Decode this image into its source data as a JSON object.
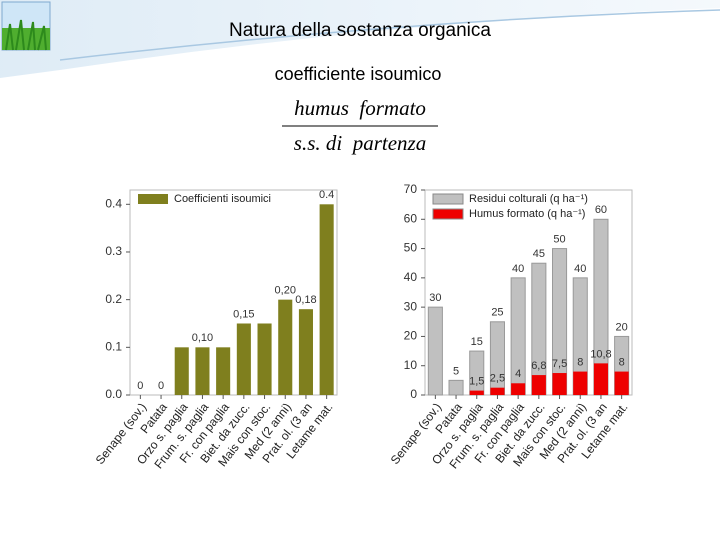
{
  "slide": {
    "title": "Natura della sostanza organica",
    "subtitle": "coefficiente isoumico",
    "formula_numerator": "humus  formato",
    "formula_denominator": "s.s. di  partenza"
  },
  "chart_data": [
    {
      "type": "bar",
      "categories": [
        "Senape (sov.)",
        "Patata",
        "Orzo s. paglia",
        "Frum. s. paglia",
        "Fr. con paglia",
        "Biet. da zucc.",
        "Mais con stoc.",
        "Med (2 anni)",
        "Prat. ol. (3 an",
        "Letame mat."
      ],
      "series": [
        {
          "name": "Coefficienti isoumici",
          "color": "#7f7f1e",
          "values": [
            0,
            0,
            0.1,
            0.1,
            0.1,
            0.15,
            0.15,
            0.2,
            0.18,
            0.4
          ],
          "value_labels": [
            "0",
            "0",
            null,
            "0,10",
            null,
            "0,15",
            null,
            "0,20",
            "0,18",
            "0.4"
          ]
        }
      ],
      "ylim": [
        0,
        0.43
      ],
      "yticks": [
        {
          "value": 0,
          "label": "0.0"
        },
        0.1,
        0.2,
        0.3,
        0.4
      ],
      "legend": "top-left"
    },
    {
      "type": "bar",
      "categories": [
        "Senape (sov.)",
        "Patata",
        "Orzo s. paglia",
        "Frum. s. paglia",
        "Fr. con paglia",
        "Biet. da zucc.",
        "Mais con stoc.",
        "Med (2 anni)",
        "Prat. ol. (3 an",
        "Letame mat."
      ],
      "series": [
        {
          "name": "Residui colturali (q ha⁻¹)",
          "color": "#c0c0c0",
          "values": [
            30,
            5,
            15,
            25,
            40,
            45,
            50,
            40,
            60,
            20
          ]
        },
        {
          "name": "Humus formato (q ha⁻¹)",
          "color": "#ee0000",
          "values": [
            null,
            null,
            1.5,
            2.5,
            4,
            6.8,
            7.5,
            8,
            10.8,
            8
          ],
          "value_labels": [
            null,
            null,
            "1,5",
            "2,5",
            "4",
            "6,8",
            "7,5",
            "8",
            "10,8",
            "8"
          ]
        }
      ],
      "ylim": [
        0,
        70
      ],
      "yticks": [
        0,
        10,
        20,
        30,
        40,
        50,
        60,
        70
      ],
      "legend": "top-left"
    }
  ]
}
